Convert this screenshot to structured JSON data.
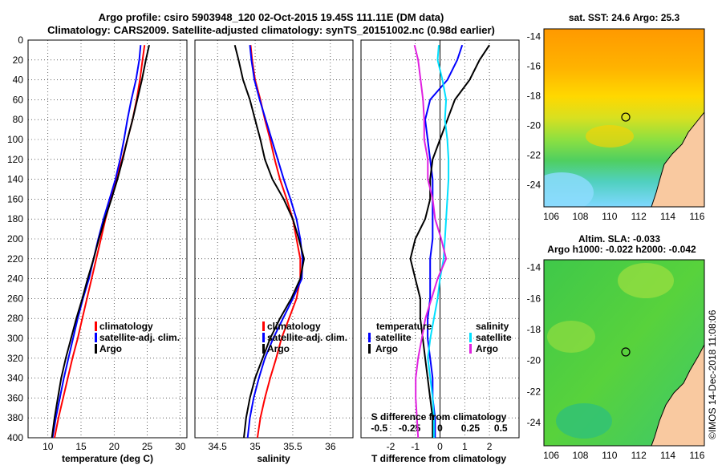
{
  "title": {
    "line1": "Argo profile: csiro 5903948_120 02-Oct-2015 19.45S 111.11E (DM data)",
    "line2": "Climatology: CARS2009. Satellite-adjusted climatology: synTS_20151002.nc (0.98d earlier)"
  },
  "colors": {
    "climatology": "#ff0000",
    "satellite_adj": "#0000ff",
    "argo": "#000000",
    "sal_satellite": "#00e0ff",
    "sal_argo": "#e020e0"
  },
  "chart_data": [
    {
      "type": "line",
      "name": "temperature",
      "xlabel": "temperature (deg C)",
      "ylabel": "depth",
      "xlim": [
        7,
        31
      ],
      "ylim": [
        400,
        0
      ],
      "xticks": [
        "10",
        "15",
        "20",
        "25",
        "30"
      ],
      "yticks": [
        "0",
        "20",
        "40",
        "60",
        "80",
        "100",
        "120",
        "140",
        "160",
        "180",
        "200",
        "220",
        "240",
        "260",
        "280",
        "300",
        "320",
        "340",
        "360",
        "380",
        "400"
      ],
      "legend": [
        "climatology",
        "satellite-adj. clim.",
        "Argo"
      ],
      "series": [
        {
          "name": "climatology",
          "color": "#ff0000",
          "depth": [
            5,
            20,
            40,
            60,
            80,
            100,
            120,
            140,
            160,
            180,
            200,
            220,
            240,
            260,
            280,
            300,
            320,
            340,
            360,
            380,
            400
          ],
          "values": [
            24.6,
            24.3,
            23.9,
            23.4,
            22.8,
            22.0,
            21.2,
            20.3,
            19.5,
            18.7,
            18.0,
            17.3,
            16.6,
            15.9,
            15.2,
            14.5,
            13.7,
            13.0,
            12.3,
            11.6,
            11.0
          ]
        },
        {
          "name": "satellite-adj. clim.",
          "color": "#0000ff",
          "depth": [
            5,
            20,
            40,
            60,
            80,
            100,
            120,
            140,
            160,
            180,
            200,
            220,
            240,
            260,
            280,
            300,
            320,
            340,
            360,
            380,
            400
          ],
          "values": [
            24.0,
            23.8,
            23.3,
            22.6,
            22.0,
            21.5,
            20.9,
            20.2,
            19.3,
            18.4,
            17.6,
            16.9,
            16.2,
            15.3,
            14.5,
            13.8,
            13.1,
            12.4,
            11.8,
            11.2,
            10.7
          ]
        },
        {
          "name": "Argo",
          "color": "#000000",
          "depth": [
            5,
            20,
            40,
            60,
            80,
            100,
            120,
            140,
            160,
            180,
            200,
            220,
            240,
            260,
            280,
            300,
            320,
            340,
            360,
            380,
            400
          ],
          "values": [
            25.3,
            24.8,
            24.2,
            23.5,
            22.8,
            22.0,
            21.3,
            20.5,
            19.6,
            18.6,
            17.7,
            16.9,
            16.0,
            15.2,
            14.3,
            13.5,
            12.7,
            12.0,
            11.5,
            11.0,
            10.6
          ]
        }
      ]
    },
    {
      "type": "line",
      "name": "salinity",
      "xlabel": "salinity",
      "xlim": [
        34.2,
        36.3
      ],
      "ylim": [
        400,
        0
      ],
      "xticks": [
        "34.5",
        "35",
        "35.5",
        "36"
      ],
      "legend": [
        "climatology",
        "satellite-adj. clim.",
        "Argo"
      ],
      "series": [
        {
          "name": "climatology",
          "color": "#ff0000",
          "depth": [
            5,
            20,
            40,
            60,
            80,
            100,
            120,
            140,
            160,
            180,
            200,
            220,
            240,
            260,
            280,
            300,
            320,
            340,
            360,
            380,
            400
          ],
          "values": [
            34.94,
            34.96,
            35.0,
            35.07,
            35.13,
            35.2,
            35.26,
            35.33,
            35.42,
            35.5,
            35.55,
            35.6,
            35.6,
            35.55,
            35.45,
            35.35,
            35.28,
            35.2,
            35.13,
            35.07,
            35.03
          ]
        },
        {
          "name": "satellite-adj. clim.",
          "color": "#0000ff",
          "depth": [
            5,
            20,
            40,
            60,
            80,
            100,
            120,
            140,
            160,
            180,
            200,
            220,
            240,
            260,
            280,
            300,
            320,
            340,
            360,
            380,
            400
          ],
          "values": [
            34.93,
            34.95,
            34.99,
            35.06,
            35.14,
            35.22,
            35.3,
            35.38,
            35.47,
            35.55,
            35.6,
            35.63,
            35.62,
            35.5,
            35.37,
            35.24,
            35.13,
            35.05,
            34.98,
            34.93,
            34.9
          ]
        },
        {
          "name": "Argo",
          "color": "#000000",
          "depth": [
            5,
            20,
            40,
            60,
            80,
            100,
            120,
            140,
            160,
            180,
            200,
            220,
            240,
            260,
            280,
            300,
            320,
            340,
            360,
            380,
            400
          ],
          "values": [
            34.73,
            34.78,
            34.84,
            34.93,
            35.0,
            35.07,
            35.13,
            35.23,
            35.38,
            35.5,
            35.58,
            35.65,
            35.6,
            35.48,
            35.33,
            35.2,
            35.1,
            35.0,
            34.93,
            34.88,
            34.85
          ]
        }
      ]
    },
    {
      "type": "line",
      "name": "difference",
      "xlabel": "T difference from climatology",
      "xlabel_top": "S difference from climatology",
      "xlim": [
        -3.2,
        3.2
      ],
      "ylim": [
        400,
        0
      ],
      "xticks": [
        "-2",
        "-1",
        "0",
        "1",
        "2"
      ],
      "sticks": [
        "-0.5",
        "-0.25",
        "0",
        "0.25",
        "0.5"
      ],
      "legend_temperature": {
        "header": "temperature",
        "items": [
          "satellite",
          "Argo"
        ]
      },
      "legend_salinity": {
        "header": "salinity",
        "items": [
          "satellite",
          "Argo"
        ]
      },
      "series": [
        {
          "name": "temperature satellite",
          "color": "#0000ff",
          "depth": [
            5,
            20,
            40,
            60,
            80,
            100,
            120,
            140,
            160,
            180,
            200,
            220,
            240,
            260,
            280,
            300,
            320,
            340,
            360,
            380,
            400
          ],
          "values": [
            0.9,
            0.7,
            0.3,
            -0.4,
            -0.6,
            -0.5,
            -0.4,
            -0.3,
            -0.3,
            -0.3,
            -0.3,
            -0.4,
            -0.4,
            -0.4,
            -0.5,
            -0.5,
            -0.4,
            -0.3,
            -0.3,
            -0.2,
            -0.2
          ]
        },
        {
          "name": "temperature Argo",
          "color": "#000000",
          "depth": [
            5,
            20,
            40,
            60,
            80,
            100,
            120,
            140,
            160,
            180,
            200,
            220,
            240,
            260,
            280,
            300,
            320,
            340,
            360,
            380,
            400
          ],
          "values": [
            2.0,
            1.6,
            1.2,
            0.6,
            0.3,
            0.0,
            -0.3,
            -0.4,
            -0.4,
            -0.6,
            -1.0,
            -1.2,
            -1.0,
            -0.8,
            -0.8,
            -0.7,
            -0.6,
            -0.5,
            -0.4,
            -0.3,
            -0.3
          ]
        },
        {
          "name": "salinity satellite",
          "color": "#00e0ff",
          "depth": [
            5,
            20,
            40,
            60,
            80,
            100,
            120,
            140,
            160,
            180,
            200,
            220,
            240,
            260,
            280,
            300,
            320,
            340,
            360,
            380,
            400
          ],
          "values": [
            -0.01,
            -0.02,
            0.02,
            0.05,
            0.04,
            0.06,
            0.07,
            0.07,
            0.06,
            0.05,
            0.04,
            0.03,
            0.0,
            -0.02,
            -0.05,
            -0.08,
            -0.1,
            -0.08,
            -0.06,
            -0.05,
            -0.05
          ]
        },
        {
          "name": "salinity Argo",
          "color": "#e020e0",
          "depth": [
            5,
            20,
            40,
            60,
            80,
            100,
            120,
            140,
            160,
            180,
            200,
            220,
            240,
            260,
            280,
            300,
            320,
            340,
            360,
            380,
            400
          ],
          "values": [
            -0.21,
            -0.18,
            -0.16,
            -0.14,
            -0.13,
            -0.13,
            -0.1,
            -0.1,
            -0.06,
            -0.04,
            0.01,
            0.05,
            -0.02,
            -0.07,
            -0.12,
            -0.15,
            -0.18,
            -0.2,
            -0.2,
            -0.19,
            -0.18
          ]
        }
      ]
    },
    {
      "type": "heatmap",
      "name": "sst_map",
      "title": "sat. SST: 24.6 Argo: 25.3",
      "xticks": [
        "106",
        "108",
        "110",
        "112",
        "114",
        "116"
      ],
      "yticks": [
        "-14",
        "-16",
        "-18",
        "-20",
        "-22",
        "-24"
      ],
      "xlim": [
        105.5,
        116.5
      ],
      "ylim": [
        -25.5,
        -13.5
      ],
      "marker": {
        "lon": 111.11,
        "lat": -19.45
      }
    },
    {
      "type": "heatmap",
      "name": "sla_map",
      "title": "Altim. SLA: -0.033",
      "subtitle": "Argo h1000: -0.022 h2000: -0.042",
      "xticks": [
        "106",
        "108",
        "110",
        "112",
        "114",
        "116"
      ],
      "yticks": [
        "-14",
        "-16",
        "-18",
        "-20",
        "-22",
        "-24"
      ],
      "xlim": [
        105.5,
        116.5
      ],
      "ylim": [
        -25.5,
        -13.5
      ],
      "marker": {
        "lon": 111.11,
        "lat": -19.45
      }
    }
  ],
  "credit": "©IMOS 14-Dec-2018 11:08:06"
}
